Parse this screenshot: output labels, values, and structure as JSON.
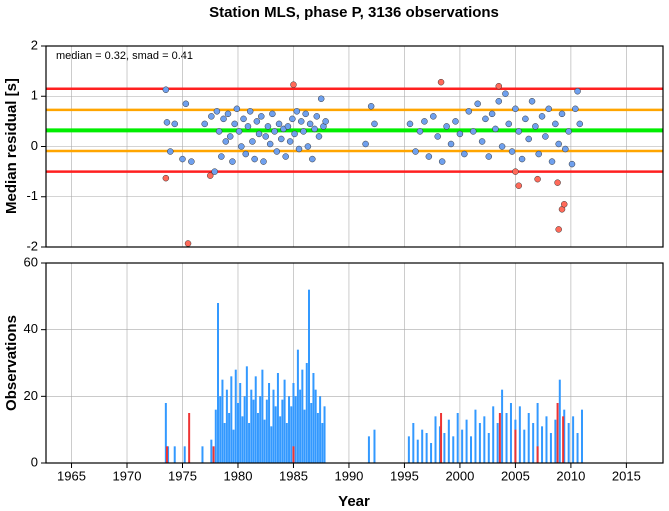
{
  "chart_data": [
    {
      "type": "scatter",
      "title": "Station MLS, phase P, 3136 observations",
      "ylabel": "Median residual [s]",
      "annotation": "median = 0.32, smad = 0.41",
      "xlim": [
        1962.7,
        2018.3
      ],
      "ylim": [
        -2,
        2
      ],
      "yticks": [
        -2,
        -1,
        0,
        1,
        2
      ],
      "grid": true,
      "reference_lines": [
        {
          "value": 1.15,
          "color": "#ff2020"
        },
        {
          "value": -0.5,
          "color": "#ff2020"
        },
        {
          "value": 0.73,
          "color": "#ffa500"
        },
        {
          "value": -0.09,
          "color": "#ffa500"
        },
        {
          "value": 0.32,
          "color": "#00ee00"
        }
      ],
      "series": [
        {
          "color": "#6fa0ee",
          "x": [
            1973.5,
            1973.6,
            1973.9,
            1974.3,
            1975,
            1975.3,
            1975.8,
            1977,
            1977.6,
            1977.9,
            1978.1,
            1978.3,
            1978.5,
            1978.7,
            1978.9,
            1979.1,
            1979.3,
            1979.5,
            1979.7,
            1979.9,
            1980.1,
            1980.3,
            1980.5,
            1980.7,
            1980.9,
            1981.1,
            1981.3,
            1981.5,
            1981.7,
            1981.9,
            1982.1,
            1982.3,
            1982.5,
            1982.7,
            1982.9,
            1983.1,
            1983.3,
            1983.5,
            1983.7,
            1983.9,
            1984.1,
            1984.3,
            1984.5,
            1984.7,
            1984.9,
            1985.1,
            1985.3,
            1985.5,
            1985.7,
            1985.9,
            1986.1,
            1986.3,
            1986.5,
            1986.7,
            1986.9,
            1987.1,
            1987.3,
            1987.5,
            1987.7,
            1987.9,
            1991.5,
            1992,
            1992.3,
            1995.5,
            1996,
            1996.4,
            1996.8,
            1997.2,
            1997.6,
            1998,
            1998.4,
            1998.8,
            1999.2,
            1999.6,
            2000,
            2000.4,
            2000.8,
            2001.2,
            2001.6,
            2002,
            2002.3,
            2002.6,
            2002.9,
            2003.2,
            2003.5,
            2003.8,
            2004.1,
            2004.4,
            2004.7,
            2005,
            2005.3,
            2005.6,
            2005.9,
            2006.2,
            2006.5,
            2006.8,
            2007.1,
            2007.4,
            2007.7,
            2008,
            2008.3,
            2008.6,
            2008.9,
            2009.2,
            2009.5,
            2009.8,
            2010.1,
            2010.4,
            2010.6,
            2010.8
          ],
          "values": [
            1.13,
            0.48,
            -0.1,
            0.45,
            -0.25,
            0.85,
            -0.3,
            0.45,
            0.6,
            -0.5,
            0.7,
            0.3,
            -0.2,
            0.55,
            0.1,
            0.65,
            0.2,
            -0.3,
            0.45,
            0.75,
            0.3,
            0.0,
            0.55,
            -0.15,
            0.4,
            0.7,
            0.1,
            -0.25,
            0.5,
            0.25,
            0.6,
            -0.3,
            0.2,
            0.4,
            0.05,
            0.65,
            0.3,
            -0.1,
            0.45,
            0.15,
            0.35,
            -0.2,
            0.4,
            0.1,
            0.55,
            0.25,
            0.7,
            -0.05,
            0.5,
            0.3,
            0.65,
            0.0,
            0.45,
            -0.25,
            0.35,
            0.6,
            0.2,
            0.95,
            0.4,
            0.5,
            0.05,
            0.8,
            0.45,
            0.45,
            -0.1,
            0.3,
            0.5,
            -0.2,
            0.6,
            0.2,
            -0.3,
            0.4,
            0.05,
            0.5,
            0.25,
            -0.15,
            0.7,
            0.3,
            0.85,
            0.1,
            0.55,
            -0.2,
            0.65,
            0.35,
            0.9,
            0.0,
            1.05,
            0.45,
            -0.1,
            0.75,
            0.3,
            -0.25,
            0.55,
            0.15,
            0.9,
            0.4,
            -0.15,
            0.6,
            0.2,
            0.75,
            -0.3,
            0.45,
            0.05,
            0.65,
            -0.05,
            0.3,
            -0.35,
            0.75,
            1.1,
            0.45
          ]
        },
        {
          "color": "#ff6a5a",
          "x": [
            1973.5,
            1975.5,
            1977.5,
            1985,
            1998.3,
            2003.5,
            2005,
            2005.3,
            2007,
            2008.8,
            2008.9,
            2009.2,
            2009.4
          ],
          "values": [
            -0.63,
            -1.93,
            -0.58,
            1.23,
            1.28,
            1.2,
            -0.5,
            -0.78,
            -0.65,
            -0.72,
            -1.65,
            -1.25,
            -1.15
          ]
        }
      ]
    },
    {
      "type": "bar",
      "xlabel": "Year",
      "ylabel": "Observations",
      "xlim": [
        1962.7,
        2018.3
      ],
      "xticks": [
        1965,
        1970,
        1975,
        1980,
        1985,
        1990,
        1995,
        2000,
        2005,
        2010,
        2015
      ],
      "ylim": [
        0,
        60
      ],
      "yticks": [
        0,
        20,
        40,
        60
      ],
      "grid": true,
      "series": [
        {
          "color": "#3399ff",
          "x": [
            1973.5,
            1973.7,
            1974.3,
            1975.2,
            1976.8,
            1977.6,
            1978,
            1978.2,
            1978.4,
            1978.6,
            1978.8,
            1979,
            1979.2,
            1979.4,
            1979.6,
            1979.8,
            1980,
            1980.2,
            1980.4,
            1980.6,
            1980.8,
            1981,
            1981.2,
            1981.4,
            1981.6,
            1981.8,
            1982,
            1982.2,
            1982.4,
            1982.6,
            1982.8,
            1983,
            1983.2,
            1983.4,
            1983.6,
            1983.8,
            1984,
            1984.2,
            1984.4,
            1984.6,
            1984.8,
            1985,
            1985.2,
            1985.4,
            1985.6,
            1985.8,
            1986,
            1986.2,
            1986.4,
            1986.6,
            1986.8,
            1987,
            1987.2,
            1987.4,
            1987.6,
            1987.8,
            1991.8,
            1992.3,
            1995.4,
            1995.8,
            1996.2,
            1996.6,
            1997,
            1997.4,
            1997.8,
            1998.2,
            1998.6,
            1999,
            1999.4,
            1999.8,
            2000.2,
            2000.6,
            2001,
            2001.4,
            2001.8,
            2002.2,
            2002.6,
            2003,
            2003.4,
            2003.8,
            2004.2,
            2004.6,
            2005,
            2005.4,
            2005.8,
            2006.2,
            2006.6,
            2007,
            2007.4,
            2007.8,
            2008.2,
            2008.6,
            2009,
            2009.4,
            2009.8,
            2010.2,
            2010.6,
            2011
          ],
          "values": [
            18,
            5,
            5,
            5,
            5,
            7,
            16,
            48,
            20,
            25,
            12,
            22,
            15,
            26,
            10,
            28,
            18,
            24,
            14,
            20,
            29,
            12,
            22,
            19,
            26,
            15,
            20,
            28,
            13,
            19,
            24,
            11,
            22,
            17,
            27,
            14,
            19,
            25,
            12,
            20,
            17,
            24,
            20,
            34,
            22,
            28,
            16,
            30,
            52,
            18,
            27,
            22,
            15,
            20,
            12,
            17,
            8,
            10,
            8,
            12,
            7,
            10,
            9,
            6,
            14,
            11,
            9,
            13,
            8,
            15,
            10,
            13,
            8,
            16,
            12,
            14,
            9,
            17,
            12,
            22,
            15,
            18,
            13,
            17,
            10,
            15,
            12,
            18,
            11,
            14,
            9,
            13,
            25,
            16,
            12,
            14,
            9,
            16
          ]
        },
        {
          "color": "#ee3333",
          "x": [
            1973.6,
            1975.6,
            1977.8,
            1985,
            1998.3,
            2003.6,
            2005,
            2007,
            2008.8,
            2009.3
          ],
          "values": [
            5,
            15,
            5,
            5,
            15,
            15,
            10,
            5,
            18,
            14
          ]
        }
      ]
    }
  ]
}
